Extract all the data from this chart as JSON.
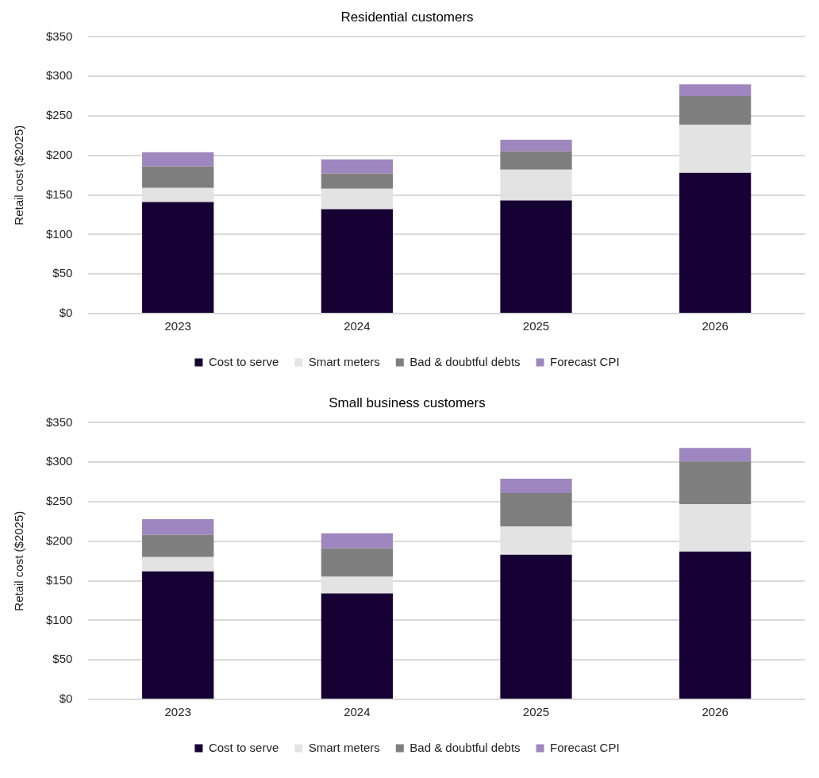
{
  "chart_data": [
    {
      "type": "bar",
      "title": "Residential customers",
      "ylabel": "Retail cost ($2025)",
      "categories": [
        "2023",
        "2024",
        "2025",
        "2026"
      ],
      "stacked": true,
      "ylim": [
        0,
        350
      ],
      "yticks": [
        {
          "value": 0,
          "label": "$0"
        },
        {
          "value": 50,
          "label": "$50"
        },
        {
          "value": 100,
          "label": "$100"
        },
        {
          "value": 150,
          "label": "$150"
        },
        {
          "value": 200,
          "label": "$200"
        },
        {
          "value": 250,
          "label": "$250"
        },
        {
          "value": 300,
          "label": "$300"
        },
        {
          "value": 350,
          "label": "$350"
        }
      ],
      "grid": "y",
      "legend": "bottom",
      "series": [
        {
          "name": "Cost to serve",
          "color": "#160033",
          "values": [
            141,
            132,
            143,
            178
          ]
        },
        {
          "name": "Smart meters",
          "color": "#e3e3e3",
          "values": [
            18,
            26,
            39,
            61
          ]
        },
        {
          "name": "Bad & doubtful debts",
          "color": "#7f7f7f",
          "values": [
            27,
            19,
            23,
            36
          ]
        },
        {
          "name": "Forecast CPI",
          "color": "#9e86be",
          "values": [
            18,
            18,
            15,
            15
          ]
        }
      ]
    },
    {
      "type": "bar",
      "title": "Small business customers",
      "ylabel": "Retail cost ($2025)",
      "categories": [
        "2023",
        "2024",
        "2025",
        "2026"
      ],
      "stacked": true,
      "ylim": [
        0,
        350
      ],
      "yticks": [
        {
          "value": 0,
          "label": "$0"
        },
        {
          "value": 50,
          "label": "$50"
        },
        {
          "value": 100,
          "label": "$100"
        },
        {
          "value": 150,
          "label": "$150"
        },
        {
          "value": 200,
          "label": "$200"
        },
        {
          "value": 250,
          "label": "$250"
        },
        {
          "value": 300,
          "label": "$300"
        },
        {
          "value": 350,
          "label": "$350"
        }
      ],
      "grid": "y",
      "legend": "bottom",
      "series": [
        {
          "name": "Cost to serve",
          "color": "#160033",
          "values": [
            162,
            134,
            183,
            187
          ]
        },
        {
          "name": "Smart meters",
          "color": "#e3e3e3",
          "values": [
            18,
            21,
            36,
            60
          ]
        },
        {
          "name": "Bad & doubtful debts",
          "color": "#7f7f7f",
          "values": [
            28,
            36,
            42,
            54
          ]
        },
        {
          "name": "Forecast CPI",
          "color": "#9e86be",
          "values": [
            20,
            19,
            18,
            17
          ]
        }
      ]
    }
  ]
}
